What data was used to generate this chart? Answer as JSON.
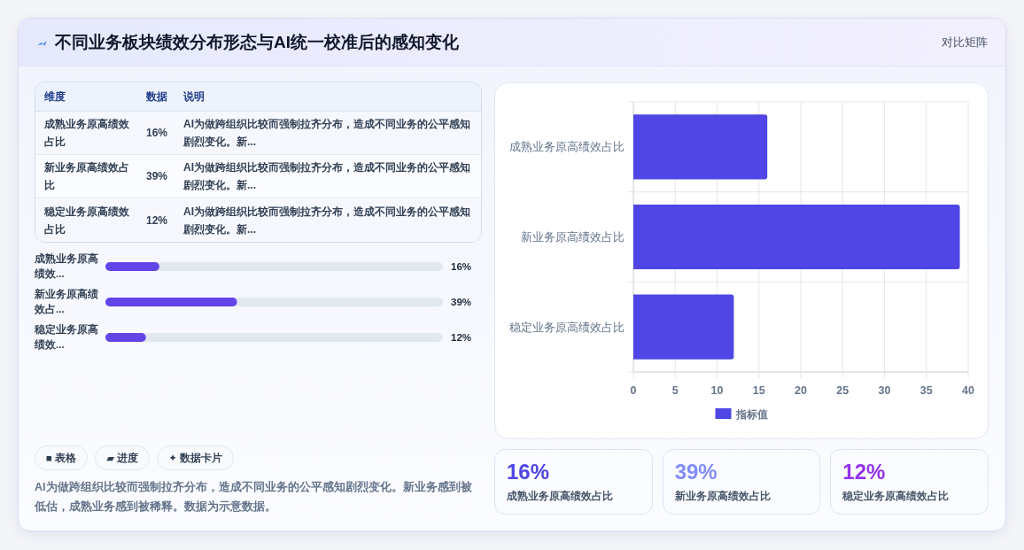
{
  "chart_data": [
    {
      "type": "other",
      "title": "不同业务板块绩效分布形态与AI统一校准后的感知变化",
      "subtitle": "对比矩阵",
      "ylabel": "维度",
      "categories": [
        "数据",
        "说明"
      ],
      "y_categories": [
        "成熟业务原高绩效占比",
        "新业务原高绩效占比",
        "稳定业务原高绩效占比"
      ],
      "cell_labels": [
        [
          "16%",
          "AI为做跨组织比较而强制拉齐分布，造成不同业务的公平感知剧烈变化。新..."
        ],
        [
          "39%",
          "AI为做跨组织比较而强制拉齐分布，造成不同业务的公平感知剧烈变化。新..."
        ],
        [
          "12%",
          "AI为做跨组织比较而强制拉齐分布，造成不同业务的公平感知剧烈变化。新..."
        ]
      ]
    },
    {
      "type": "bar",
      "orientation": "horizontal",
      "categories": [
        "成熟业务原高绩效...",
        "新业务原高绩效占...",
        "稳定业务原高绩效..."
      ],
      "values": [
        16,
        39,
        12
      ],
      "value_labels": [
        "16%",
        "39%",
        "12%"
      ],
      "color": "#6344e6",
      "xlim": [
        0,
        100
      ],
      "tick_labels": "y",
      "annotations": [
        "■ 表格",
        "▰ 进度",
        "✦ 数据卡片",
        "AI为做跨组织比较而强制拉齐分布，造成不同业务的公平感知剧烈变化。新业务感到被低估，成熟业务感到被稀释。数据为示意数据。"
      ]
    },
    {
      "type": "bar",
      "orientation": "horizontal",
      "categories": [
        "成熟业务原高绩效占比",
        "新业务原高绩效占比",
        "稳定业务原高绩效占比"
      ],
      "series": [
        {
          "name": "指标值",
          "color": "#4f46e5",
          "values": [
            16,
            39,
            12
          ]
        }
      ],
      "xlim": [
        0,
        40
      ],
      "xticks": [
        0,
        5,
        10,
        15,
        20,
        25,
        30,
        35,
        40
      ],
      "grid": true,
      "legend": "bottom"
    },
    {
      "type": "other",
      "categories": [
        "成熟业务原高绩效占比",
        "新业务原高绩效占比",
        "稳定业务原高绩效占比"
      ],
      "value_labels": [
        "16%",
        "39%",
        "12%"
      ]
    }
  ]
}
